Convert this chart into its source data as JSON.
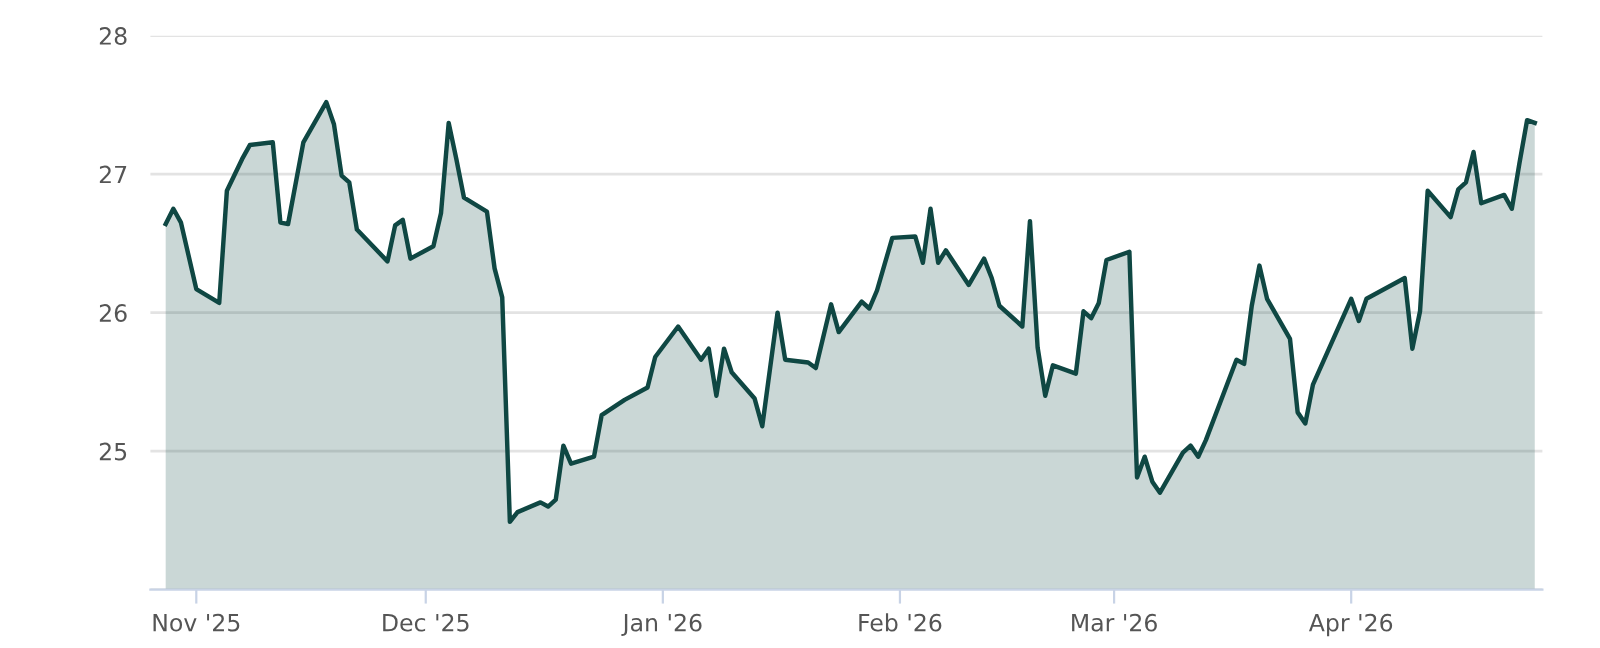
{
  "chart_data": {
    "type": "area",
    "x": [
      "2025-10-28",
      "2025-10-29",
      "2025-10-30",
      "2025-11-01",
      "2025-11-04",
      "2025-11-05",
      "2025-11-07",
      "2025-11-08",
      "2025-11-11",
      "2025-11-12",
      "2025-11-13",
      "2025-11-15",
      "2025-11-18",
      "2025-11-19",
      "2025-11-20",
      "2025-11-21",
      "2025-11-22",
      "2025-11-26",
      "2025-11-27",
      "2025-11-28",
      "2025-11-29",
      "2025-12-02",
      "2025-12-03",
      "2025-12-04",
      "2025-12-05",
      "2025-12-06",
      "2025-12-09",
      "2025-12-10",
      "2025-12-11",
      "2025-12-12",
      "2025-12-13",
      "2025-12-16",
      "2025-12-17",
      "2025-12-18",
      "2025-12-19",
      "2025-12-20",
      "2025-12-23",
      "2025-12-24",
      "2025-12-27",
      "2025-12-30",
      "2025-12-31",
      "2026-01-03",
      "2026-01-06",
      "2026-01-07",
      "2026-01-08",
      "2026-01-09",
      "2026-01-10",
      "2026-01-13",
      "2026-01-14",
      "2026-01-16",
      "2026-01-17",
      "2026-01-20",
      "2026-01-21",
      "2026-01-23",
      "2026-01-24",
      "2026-01-27",
      "2026-01-28",
      "2026-01-29",
      "2026-01-30",
      "2026-01-31",
      "2026-02-03",
      "2026-02-04",
      "2026-02-05",
      "2026-02-06",
      "2026-02-07",
      "2026-02-10",
      "2026-02-12",
      "2026-02-13",
      "2026-02-14",
      "2026-02-17",
      "2026-02-18",
      "2026-02-19",
      "2026-02-20",
      "2026-02-21",
      "2026-02-24",
      "2026-02-25",
      "2026-02-26",
      "2026-02-27",
      "2026-02-28",
      "2026-03-03",
      "2026-03-04",
      "2026-03-05",
      "2026-03-06",
      "2026-03-07",
      "2026-03-10",
      "2026-03-11",
      "2026-03-12",
      "2026-03-13",
      "2026-03-17",
      "2026-03-18",
      "2026-03-19",
      "2026-03-20",
      "2026-03-21",
      "2026-03-24",
      "2026-03-25",
      "2026-03-26",
      "2026-03-27",
      "2026-04-01",
      "2026-04-02",
      "2026-04-03",
      "2026-04-08",
      "2026-04-09",
      "2026-04-10",
      "2026-04-11",
      "2026-04-14",
      "2026-04-15",
      "2026-04-16",
      "2026-04-17",
      "2026-04-18",
      "2026-04-21",
      "2026-04-22",
      "2026-04-23",
      "2026-04-24",
      "2026-04-25"
    ],
    "series": [
      {
        "color": "#0f4743",
        "values": [
          26.64,
          26.75,
          26.65,
          26.17,
          26.07,
          26.88,
          27.11,
          27.21,
          27.23,
          26.65,
          26.64,
          27.23,
          27.52,
          27.36,
          26.99,
          26.94,
          26.6,
          26.37,
          26.63,
          26.67,
          26.39,
          26.48,
          26.72,
          27.37,
          27.11,
          26.83,
          26.73,
          26.32,
          26.11,
          24.49,
          24.56,
          24.63,
          24.6,
          24.65,
          25.04,
          24.91,
          24.96,
          25.26,
          25.37,
          25.46,
          25.68,
          25.9,
          25.66,
          25.74,
          25.4,
          25.74,
          25.57,
          25.38,
          25.18,
          26.0,
          25.66,
          25.64,
          25.6,
          26.06,
          25.86,
          26.08,
          26.03,
          26.16,
          26.35,
          26.54,
          26.55,
          26.36,
          26.75,
          26.36,
          26.45,
          26.2,
          26.39,
          26.25,
          26.05,
          25.9,
          26.66,
          25.75,
          25.4,
          25.62,
          25.56,
          26.01,
          25.96,
          26.07,
          26.38,
          26.44,
          24.81,
          24.96,
          24.78,
          24.7,
          24.99,
          25.04,
          24.96,
          25.08,
          25.66,
          25.63,
          26.05,
          26.34,
          26.1,
          25.81,
          25.28,
          25.2,
          25.48,
          26.1,
          25.94,
          26.1,
          26.25,
          25.74,
          26.01,
          26.88,
          26.69,
          26.89,
          26.94,
          27.16,
          26.79,
          26.85,
          26.75,
          27.08,
          27.39,
          27.37
        ]
      }
    ],
    "xlim": [
      "2025-10-26",
      "2026-04-26"
    ],
    "xticks": [
      {
        "value": "2025-11-01",
        "label": "Nov '25"
      },
      {
        "value": "2025-12-01",
        "label": "Dec '25"
      },
      {
        "value": "2026-01-01",
        "label": "Jan '26"
      },
      {
        "value": "2026-02-01",
        "label": "Feb '26"
      },
      {
        "value": "2026-03-01",
        "label": "Mar '26"
      },
      {
        "value": "2026-04-01",
        "label": "Apr '26"
      }
    ],
    "ylim": [
      24,
      28
    ],
    "yticks": [
      {
        "value": 24,
        "label": null
      },
      25,
      26,
      27,
      28
    ],
    "grid": "y",
    "marker": "none",
    "line_style": "solid"
  }
}
